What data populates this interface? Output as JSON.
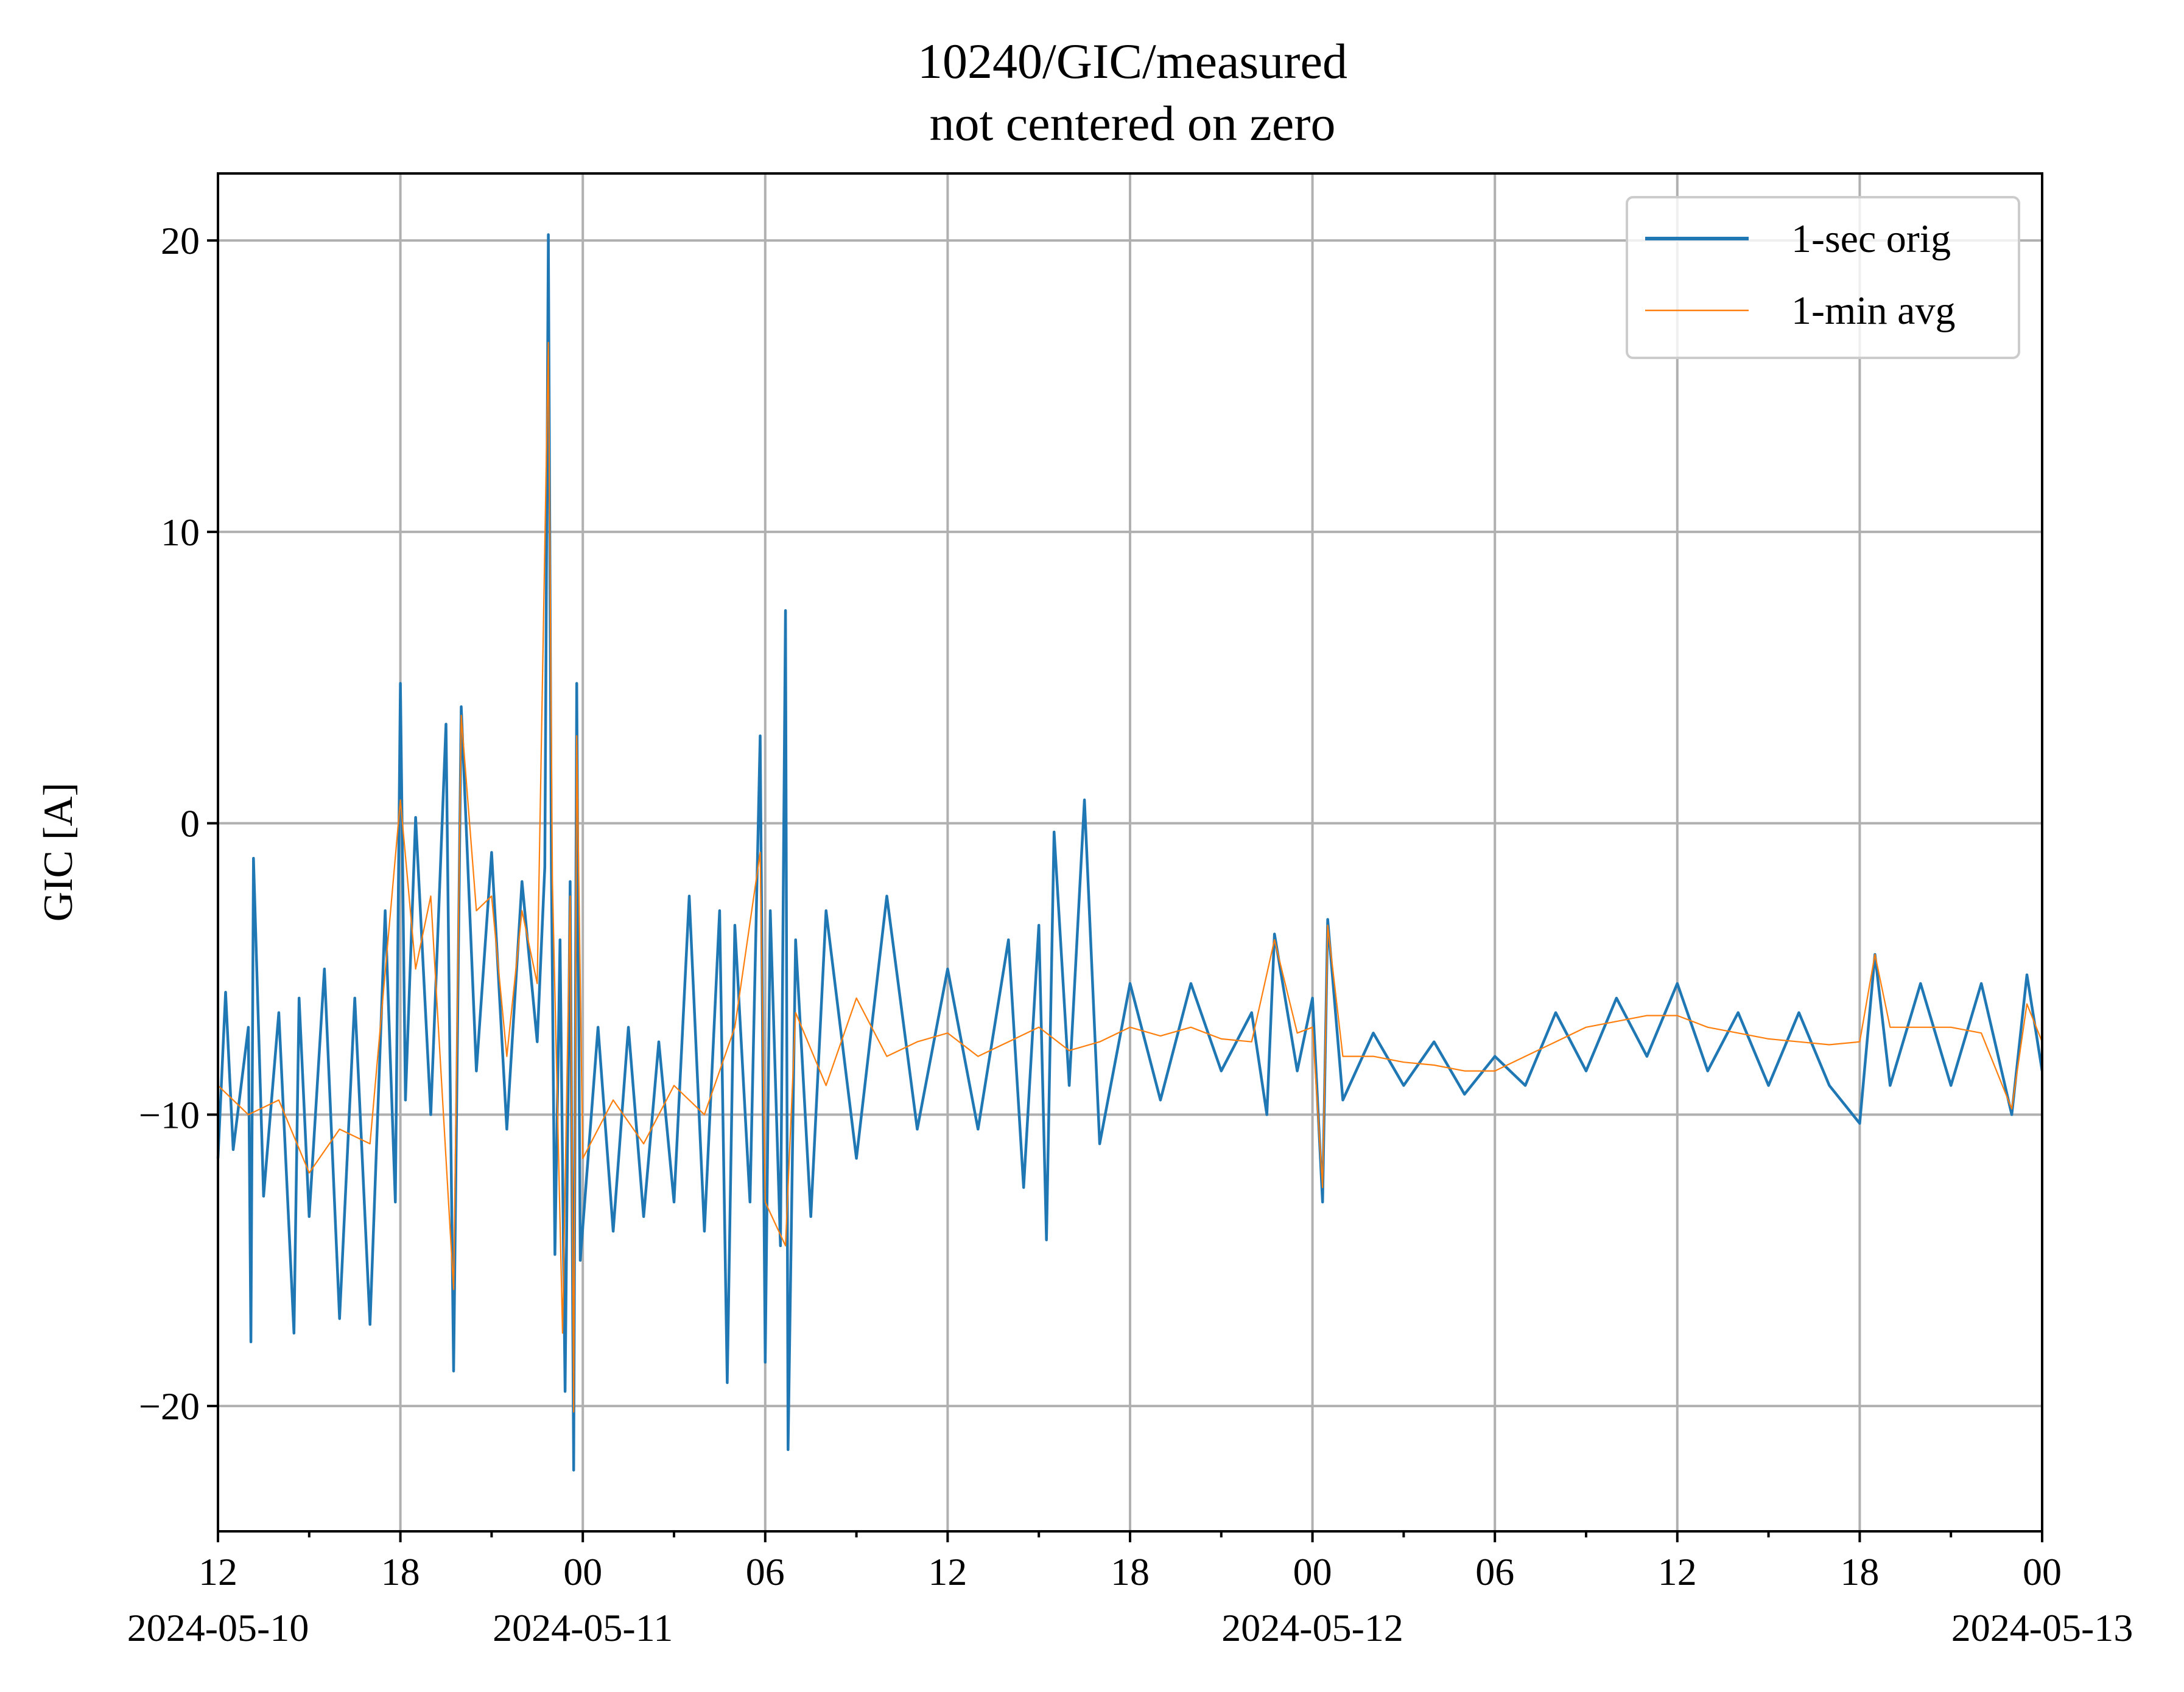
{
  "chart_data": {
    "type": "line",
    "title": "10240/GIC/measured",
    "subtitle": "not centered on zero",
    "xlabel": "",
    "ylabel": "GIC [A]",
    "x_unit": "datetime",
    "xlim": [
      "2024-05-10T12:00",
      "2024-05-13T00:00"
    ],
    "ylim": [
      -24.3,
      22.3
    ],
    "grid": true,
    "legend_position": "top-right",
    "y_ticks": [
      {
        "value": 20,
        "label": "20"
      },
      {
        "value": 10,
        "label": "10"
      },
      {
        "value": 0,
        "label": "0"
      },
      {
        "value": -10,
        "label": "−10"
      },
      {
        "value": -20,
        "label": "−20"
      }
    ],
    "x_major_ticks": [
      {
        "value": "2024-05-10T12:00",
        "label": "12",
        "date_label": "2024-05-10"
      },
      {
        "value": "2024-05-10T18:00",
        "label": "18",
        "date_label": ""
      },
      {
        "value": "2024-05-11T00:00",
        "label": "00",
        "date_label": "2024-05-11"
      },
      {
        "value": "2024-05-11T06:00",
        "label": "06",
        "date_label": ""
      },
      {
        "value": "2024-05-11T12:00",
        "label": "12",
        "date_label": ""
      },
      {
        "value": "2024-05-11T18:00",
        "label": "18",
        "date_label": ""
      },
      {
        "value": "2024-05-12T00:00",
        "label": "00",
        "date_label": "2024-05-12"
      },
      {
        "value": "2024-05-12T06:00",
        "label": "06",
        "date_label": ""
      },
      {
        "value": "2024-05-12T12:00",
        "label": "12",
        "date_label": ""
      },
      {
        "value": "2024-05-12T18:00",
        "label": "18",
        "date_label": ""
      },
      {
        "value": "2024-05-13T00:00",
        "label": "00",
        "date_label": "2024-05-13"
      }
    ],
    "x_minor_ticks": [
      "2024-05-10T15:00",
      "2024-05-10T21:00",
      "2024-05-11T03:00",
      "2024-05-11T09:00",
      "2024-05-11T15:00",
      "2024-05-11T21:00",
      "2024-05-12T03:00",
      "2024-05-12T09:00",
      "2024-05-12T15:00",
      "2024-05-12T21:00"
    ],
    "series": [
      {
        "name": "1-sec orig",
        "color": "#1f77b4",
        "points": [
          [
            "2024-05-10T12:00",
            -11.5
          ],
          [
            "2024-05-10T12:15",
            -5.8
          ],
          [
            "2024-05-10T12:30",
            -11.2
          ],
          [
            "2024-05-10T13:00",
            -7.0
          ],
          [
            "2024-05-10T13:05",
            -17.8
          ],
          [
            "2024-05-10T13:10",
            -1.2
          ],
          [
            "2024-05-10T13:30",
            -12.8
          ],
          [
            "2024-05-10T14:00",
            -6.5
          ],
          [
            "2024-05-10T14:30",
            -17.5
          ],
          [
            "2024-05-10T14:40",
            -6.0
          ],
          [
            "2024-05-10T15:00",
            -13.5
          ],
          [
            "2024-05-10T15:30",
            -5.0
          ],
          [
            "2024-05-10T16:00",
            -17.0
          ],
          [
            "2024-05-10T16:30",
            -6.0
          ],
          [
            "2024-05-10T17:00",
            -17.2
          ],
          [
            "2024-05-10T17:30",
            -3.0
          ],
          [
            "2024-05-10T17:50",
            -13.0
          ],
          [
            "2024-05-10T18:00",
            4.8
          ],
          [
            "2024-05-10T18:10",
            -9.5
          ],
          [
            "2024-05-10T18:30",
            0.2
          ],
          [
            "2024-05-10T19:00",
            -10.0
          ],
          [
            "2024-05-10T19:30",
            3.4
          ],
          [
            "2024-05-10T19:45",
            -18.8
          ],
          [
            "2024-05-10T20:00",
            4.0
          ],
          [
            "2024-05-10T20:30",
            -8.5
          ],
          [
            "2024-05-10T21:00",
            -1.0
          ],
          [
            "2024-05-10T21:30",
            -10.5
          ],
          [
            "2024-05-10T22:00",
            -2.0
          ],
          [
            "2024-05-10T22:30",
            -7.5
          ],
          [
            "2024-05-10T22:45",
            -1.5
          ],
          [
            "2024-05-10T22:52",
            20.2
          ],
          [
            "2024-05-10T22:58",
            -1.5
          ],
          [
            "2024-05-10T23:05",
            -14.8
          ],
          [
            "2024-05-10T23:15",
            -4.0
          ],
          [
            "2024-05-10T23:25",
            -19.5
          ],
          [
            "2024-05-10T23:35",
            -2.0
          ],
          [
            "2024-05-10T23:42",
            -22.2
          ],
          [
            "2024-05-10T23:48",
            4.8
          ],
          [
            "2024-05-10T23:55",
            -15.0
          ],
          [
            "2024-05-11T00:30",
            -7.0
          ],
          [
            "2024-05-11T01:00",
            -14.0
          ],
          [
            "2024-05-11T01:30",
            -7.0
          ],
          [
            "2024-05-11T02:00",
            -13.5
          ],
          [
            "2024-05-11T02:30",
            -7.5
          ],
          [
            "2024-05-11T03:00",
            -13.0
          ],
          [
            "2024-05-11T03:30",
            -2.5
          ],
          [
            "2024-05-11T04:00",
            -14.0
          ],
          [
            "2024-05-11T04:30",
            -3.0
          ],
          [
            "2024-05-11T04:45",
            -19.2
          ],
          [
            "2024-05-11T05:00",
            -3.5
          ],
          [
            "2024-05-11T05:30",
            -13.0
          ],
          [
            "2024-05-11T05:50",
            3.0
          ],
          [
            "2024-05-11T06:00",
            -18.5
          ],
          [
            "2024-05-11T06:10",
            -3.0
          ],
          [
            "2024-05-11T06:30",
            -14.5
          ],
          [
            "2024-05-11T06:40",
            7.3
          ],
          [
            "2024-05-11T06:45",
            -21.5
          ],
          [
            "2024-05-11T07:00",
            -4.0
          ],
          [
            "2024-05-11T07:30",
            -13.5
          ],
          [
            "2024-05-11T08:00",
            -3.0
          ],
          [
            "2024-05-11T09:00",
            -11.5
          ],
          [
            "2024-05-11T10:00",
            -2.5
          ],
          [
            "2024-05-11T11:00",
            -10.5
          ],
          [
            "2024-05-11T12:00",
            -5.0
          ],
          [
            "2024-05-11T13:00",
            -10.5
          ],
          [
            "2024-05-11T14:00",
            -4.0
          ],
          [
            "2024-05-11T14:30",
            -12.5
          ],
          [
            "2024-05-11T15:00",
            -3.5
          ],
          [
            "2024-05-11T15:15",
            -14.3
          ],
          [
            "2024-05-11T15:30",
            -0.3
          ],
          [
            "2024-05-11T16:00",
            -9.0
          ],
          [
            "2024-05-11T16:30",
            0.8
          ],
          [
            "2024-05-11T17:00",
            -11.0
          ],
          [
            "2024-05-11T18:00",
            -5.5
          ],
          [
            "2024-05-11T19:00",
            -9.5
          ],
          [
            "2024-05-11T20:00",
            -5.5
          ],
          [
            "2024-05-11T21:00",
            -8.5
          ],
          [
            "2024-05-11T22:00",
            -6.5
          ],
          [
            "2024-05-11T22:30",
            -10.0
          ],
          [
            "2024-05-11T22:45",
            -3.8
          ],
          [
            "2024-05-11T23:30",
            -8.5
          ],
          [
            "2024-05-12T00:00",
            -6.0
          ],
          [
            "2024-05-12T00:20",
            -13.0
          ],
          [
            "2024-05-12T00:30",
            -3.3
          ],
          [
            "2024-05-12T01:00",
            -9.5
          ],
          [
            "2024-05-12T02:00",
            -7.2
          ],
          [
            "2024-05-12T03:00",
            -9.0
          ],
          [
            "2024-05-12T04:00",
            -7.5
          ],
          [
            "2024-05-12T05:00",
            -9.3
          ],
          [
            "2024-05-12T06:00",
            -8.0
          ],
          [
            "2024-05-12T07:00",
            -9.0
          ],
          [
            "2024-05-12T08:00",
            -6.5
          ],
          [
            "2024-05-12T09:00",
            -8.5
          ],
          [
            "2024-05-12T10:00",
            -6.0
          ],
          [
            "2024-05-12T11:00",
            -8.0
          ],
          [
            "2024-05-12T12:00",
            -5.5
          ],
          [
            "2024-05-12T13:00",
            -8.5
          ],
          [
            "2024-05-12T14:00",
            -6.5
          ],
          [
            "2024-05-12T15:00",
            -9.0
          ],
          [
            "2024-05-12T16:00",
            -6.5
          ],
          [
            "2024-05-12T17:00",
            -9.0
          ],
          [
            "2024-05-12T18:00",
            -10.3
          ],
          [
            "2024-05-12T18:30",
            -4.5
          ],
          [
            "2024-05-12T19:00",
            -9.0
          ],
          [
            "2024-05-12T20:00",
            -5.5
          ],
          [
            "2024-05-12T21:00",
            -9.0
          ],
          [
            "2024-05-12T22:00",
            -5.5
          ],
          [
            "2024-05-12T23:00",
            -10.0
          ],
          [
            "2024-05-12T23:30",
            -5.2
          ],
          [
            "2024-05-13T00:00",
            -8.5
          ]
        ]
      },
      {
        "name": "1-min avg",
        "color": "#ff7f0e",
        "points": [
          [
            "2024-05-10T12:00",
            -9.0
          ],
          [
            "2024-05-10T13:00",
            -10.0
          ],
          [
            "2024-05-10T14:00",
            -9.5
          ],
          [
            "2024-05-10T15:00",
            -12.0
          ],
          [
            "2024-05-10T16:00",
            -10.5
          ],
          [
            "2024-05-10T17:00",
            -11.0
          ],
          [
            "2024-05-10T18:00",
            0.8
          ],
          [
            "2024-05-10T18:30",
            -5.0
          ],
          [
            "2024-05-10T19:00",
            -2.5
          ],
          [
            "2024-05-10T19:45",
            -16.0
          ],
          [
            "2024-05-10T20:00",
            3.7
          ],
          [
            "2024-05-10T20:30",
            -3.0
          ],
          [
            "2024-05-10T21:00",
            -2.5
          ],
          [
            "2024-05-10T21:30",
            -8.0
          ],
          [
            "2024-05-10T22:00",
            -3.0
          ],
          [
            "2024-05-10T22:30",
            -5.5
          ],
          [
            "2024-05-10T22:52",
            16.5
          ],
          [
            "2024-05-10T23:00",
            -2.0
          ],
          [
            "2024-05-10T23:20",
            -17.5
          ],
          [
            "2024-05-10T23:35",
            -2.5
          ],
          [
            "2024-05-10T23:42",
            -20.2
          ],
          [
            "2024-05-10T23:48",
            3.0
          ],
          [
            "2024-05-11T00:00",
            -11.5
          ],
          [
            "2024-05-11T01:00",
            -9.5
          ],
          [
            "2024-05-11T02:00",
            -11.0
          ],
          [
            "2024-05-11T03:00",
            -9.0
          ],
          [
            "2024-05-11T04:00",
            -10.0
          ],
          [
            "2024-05-11T05:00",
            -7.0
          ],
          [
            "2024-05-11T05:50",
            -1.0
          ],
          [
            "2024-05-11T06:00",
            -13.0
          ],
          [
            "2024-05-11T06:40",
            -14.5
          ],
          [
            "2024-05-11T07:00",
            -6.5
          ],
          [
            "2024-05-11T08:00",
            -9.0
          ],
          [
            "2024-05-11T09:00",
            -6.0
          ],
          [
            "2024-05-11T10:00",
            -8.0
          ],
          [
            "2024-05-11T11:00",
            -7.5
          ],
          [
            "2024-05-11T12:00",
            -7.2
          ],
          [
            "2024-05-11T13:00",
            -8.0
          ],
          [
            "2024-05-11T14:00",
            -7.5
          ],
          [
            "2024-05-11T15:00",
            -7.0
          ],
          [
            "2024-05-11T16:00",
            -7.8
          ],
          [
            "2024-05-11T17:00",
            -7.5
          ],
          [
            "2024-05-11T18:00",
            -7.0
          ],
          [
            "2024-05-11T19:00",
            -7.3
          ],
          [
            "2024-05-11T20:00",
            -7.0
          ],
          [
            "2024-05-11T21:00",
            -7.4
          ],
          [
            "2024-05-11T22:00",
            -7.5
          ],
          [
            "2024-05-11T22:45",
            -4.0
          ],
          [
            "2024-05-11T23:30",
            -7.2
          ],
          [
            "2024-05-12T00:00",
            -7.0
          ],
          [
            "2024-05-12T00:20",
            -12.5
          ],
          [
            "2024-05-12T00:30",
            -3.5
          ],
          [
            "2024-05-12T01:00",
            -8.0
          ],
          [
            "2024-05-12T02:00",
            -8.0
          ],
          [
            "2024-05-12T03:00",
            -8.2
          ],
          [
            "2024-05-12T04:00",
            -8.3
          ],
          [
            "2024-05-12T05:00",
            -8.5
          ],
          [
            "2024-05-12T06:00",
            -8.5
          ],
          [
            "2024-05-12T07:00",
            -8.0
          ],
          [
            "2024-05-12T08:00",
            -7.5
          ],
          [
            "2024-05-12T09:00",
            -7.0
          ],
          [
            "2024-05-12T10:00",
            -6.8
          ],
          [
            "2024-05-12T11:00",
            -6.6
          ],
          [
            "2024-05-12T12:00",
            -6.6
          ],
          [
            "2024-05-12T13:00",
            -7.0
          ],
          [
            "2024-05-12T14:00",
            -7.2
          ],
          [
            "2024-05-12T15:00",
            -7.4
          ],
          [
            "2024-05-12T16:00",
            -7.5
          ],
          [
            "2024-05-12T17:00",
            -7.6
          ],
          [
            "2024-05-12T18:00",
            -7.5
          ],
          [
            "2024-05-12T18:30",
            -4.5
          ],
          [
            "2024-05-12T19:00",
            -7.0
          ],
          [
            "2024-05-12T20:00",
            -7.0
          ],
          [
            "2024-05-12T21:00",
            -7.0
          ],
          [
            "2024-05-12T22:00",
            -7.2
          ],
          [
            "2024-05-12T23:00",
            -9.8
          ],
          [
            "2024-05-12T23:30",
            -6.2
          ],
          [
            "2024-05-13T00:00",
            -7.5
          ]
        ]
      }
    ]
  }
}
